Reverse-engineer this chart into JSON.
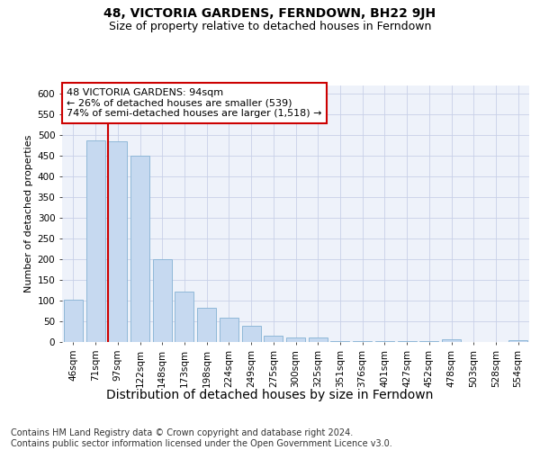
{
  "title1": "48, VICTORIA GARDENS, FERNDOWN, BH22 9JH",
  "title2": "Size of property relative to detached houses in Ferndown",
  "xlabel": "Distribution of detached houses by size in Ferndown",
  "ylabel": "Number of detached properties",
  "categories": [
    "46sqm",
    "71sqm",
    "97sqm",
    "122sqm",
    "148sqm",
    "173sqm",
    "198sqm",
    "224sqm",
    "249sqm",
    "275sqm",
    "300sqm",
    "325sqm",
    "351sqm",
    "376sqm",
    "401sqm",
    "427sqm",
    "452sqm",
    "478sqm",
    "503sqm",
    "528sqm",
    "554sqm"
  ],
  "values": [
    103,
    487,
    485,
    451,
    200,
    122,
    82,
    58,
    40,
    16,
    10,
    10,
    2,
    2,
    2,
    2,
    2,
    6,
    1,
    1,
    5
  ],
  "bar_color": "#c6d9f0",
  "bar_edge_color": "#8fb8d8",
  "vline_x_idx": 2,
  "vline_color": "#cc0000",
  "annotation_text": "48 VICTORIA GARDENS: 94sqm\n← 26% of detached houses are smaller (539)\n74% of semi-detached houses are larger (1,518) →",
  "annotation_box_facecolor": "#ffffff",
  "annotation_box_edgecolor": "#cc0000",
  "footer": "Contains HM Land Registry data © Crown copyright and database right 2024.\nContains public sector information licensed under the Open Government Licence v3.0.",
  "ylim": [
    0,
    620
  ],
  "yticks": [
    0,
    50,
    100,
    150,
    200,
    250,
    300,
    350,
    400,
    450,
    500,
    550,
    600
  ],
  "background_color": "#eef2fa",
  "grid_color": "#c8d0e8",
  "title1_fontsize": 10,
  "title2_fontsize": 9,
  "xlabel_fontsize": 10,
  "ylabel_fontsize": 8,
  "tick_fontsize": 7.5,
  "annotation_fontsize": 8,
  "footer_fontsize": 7
}
